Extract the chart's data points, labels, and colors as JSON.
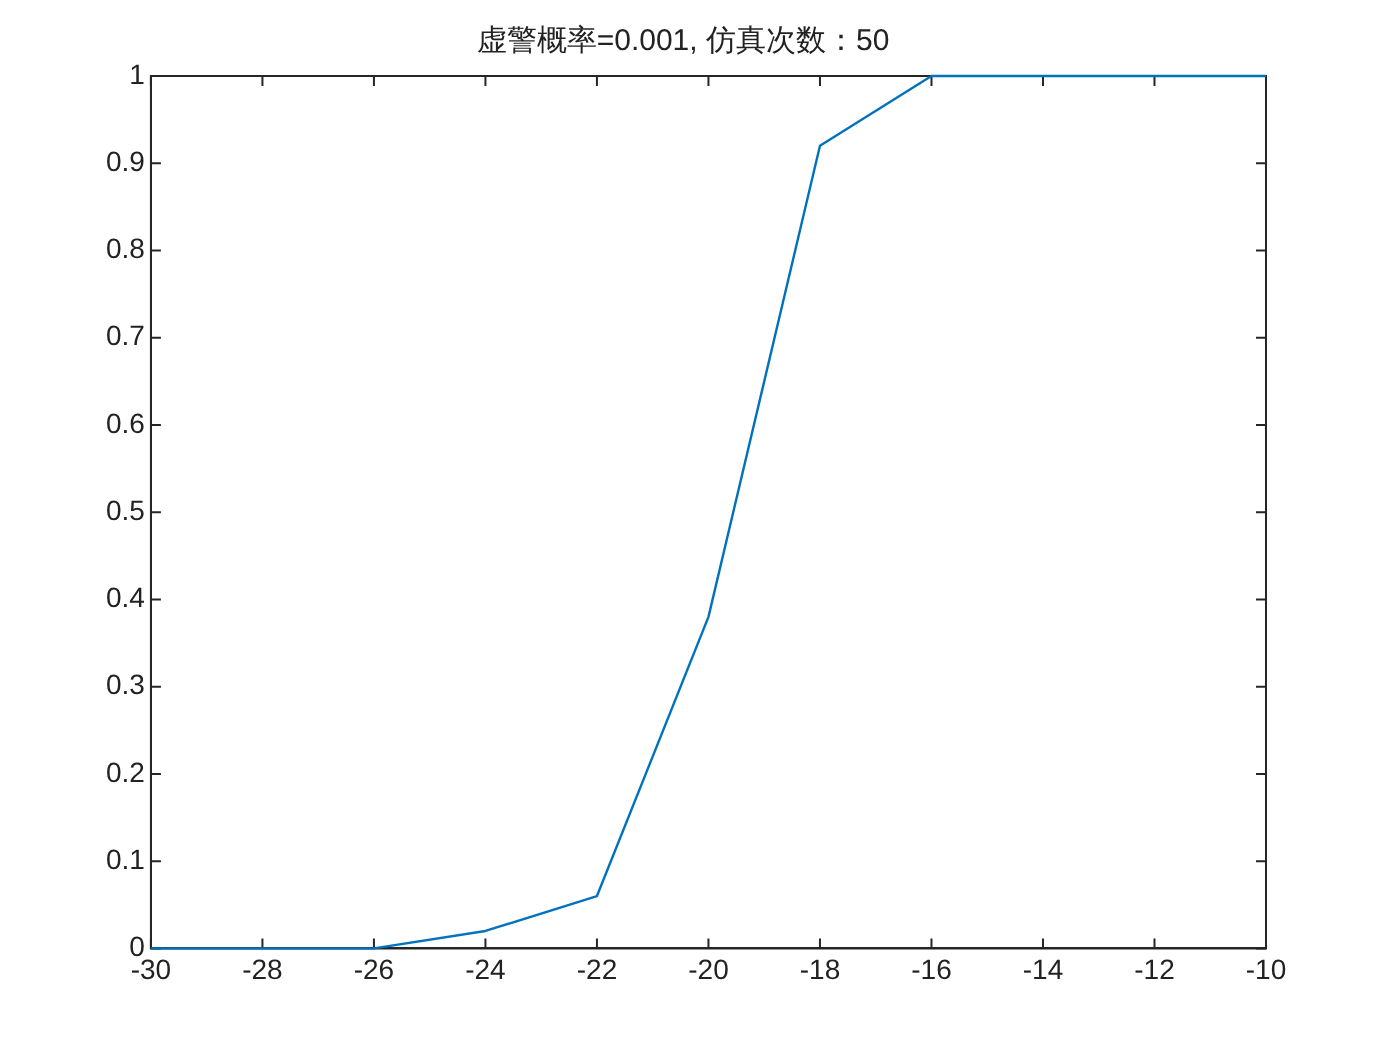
{
  "chart_data": {
    "type": "line",
    "title": "虚警概率=0.001, 仿真次数：50",
    "x": [
      -30,
      -28,
      -26,
      -24,
      -22,
      -20,
      -18,
      -16,
      -14,
      -12,
      -10
    ],
    "series": [
      {
        "color": "#0072bd",
        "values": [
          0,
          0,
          0,
          0.02,
          0.06,
          0.38,
          0.92,
          1,
          1,
          1,
          1
        ]
      }
    ],
    "xlim": [
      -30,
      -10
    ],
    "xticks": [
      -30,
      -28,
      -26,
      -24,
      -22,
      -20,
      -18,
      -16,
      -14,
      -12,
      -10
    ],
    "ylim": [
      0,
      1
    ],
    "yticks": [
      0,
      0.1,
      0.2,
      0.3,
      0.4,
      0.5,
      0.6,
      0.7,
      0.8,
      0.9,
      1
    ],
    "grid": false,
    "legend": false,
    "marker": "none",
    "line_style": "solid"
  }
}
